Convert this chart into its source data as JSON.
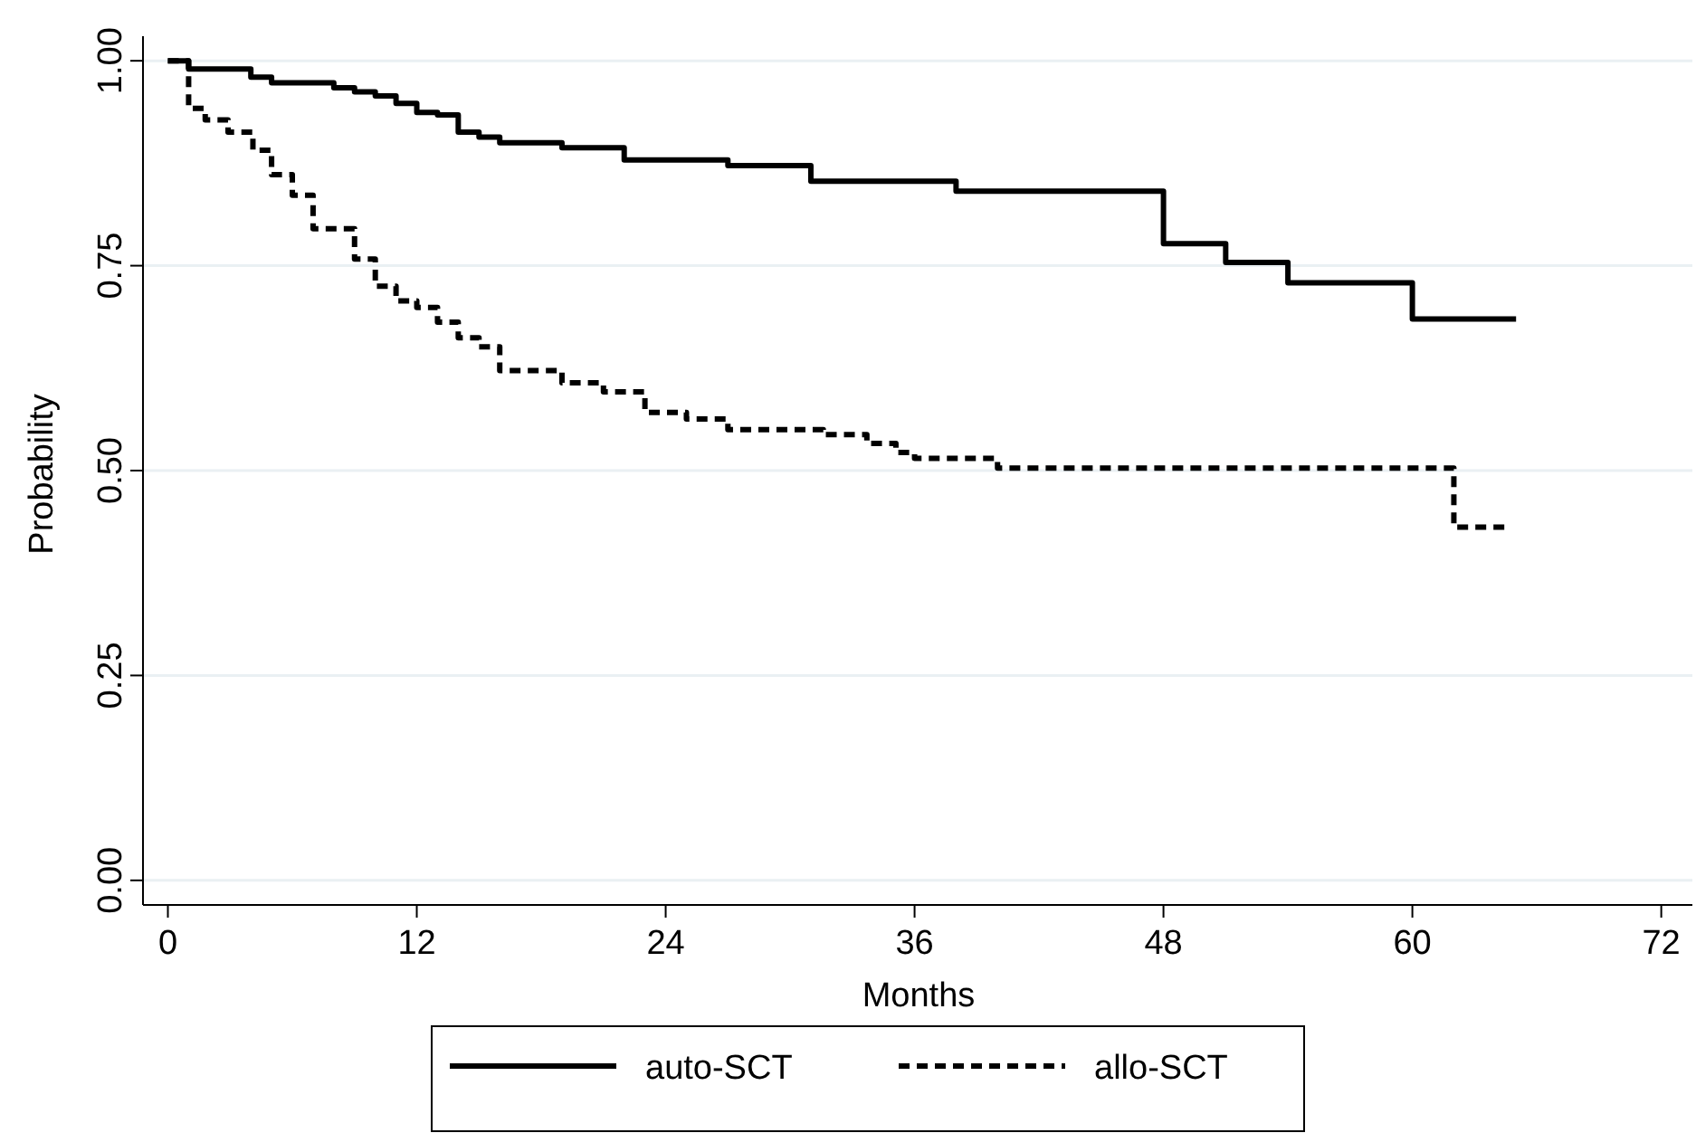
{
  "chart_data": {
    "type": "step",
    "xlabel": "Months",
    "ylabel": "Probability",
    "xlim": [
      -1.2,
      73.5
    ],
    "xticks": [
      0,
      12,
      24,
      36,
      48,
      60,
      72
    ],
    "ylim": [
      -0.03,
      1.03
    ],
    "yticks": [
      {
        "value": 0,
        "label": "0.00"
      },
      {
        "value": 0.25,
        "label": "0.25"
      },
      {
        "value": 0.5,
        "label": "0.50"
      },
      {
        "value": 0.75,
        "label": "0.75"
      },
      {
        "value": 1,
        "label": "1.00"
      }
    ],
    "grid": "y",
    "legend": "bottom",
    "series": [
      {
        "name": "auto-SCT",
        "color": "#000000",
        "line_style": "solid",
        "x": [
          0,
          1,
          4,
          5,
          8,
          9,
          10,
          11,
          12,
          13,
          14,
          15,
          16,
          19,
          22,
          27,
          31,
          38,
          48,
          51,
          54,
          60,
          65
        ],
        "values": [
          1,
          0.99,
          0.98,
          0.973,
          0.967,
          0.962,
          0.957,
          0.948,
          0.937,
          0.934,
          0.913,
          0.907,
          0.9,
          0.894,
          0.879,
          0.872,
          0.853,
          0.841,
          0.777,
          0.754,
          0.729,
          0.685,
          0.685
        ]
      },
      {
        "name": "allo-SCT",
        "color": "#000000",
        "line_style": "dashed",
        "x": [
          0,
          1,
          1.8,
          2.9,
          4.1,
          5,
          6,
          7,
          9,
          10,
          11,
          12,
          13,
          14,
          15,
          16,
          19,
          21,
          23,
          25,
          27,
          31.6,
          33.7,
          35.1,
          36,
          40,
          62,
          64.5
        ],
        "values": [
          1,
          0.942,
          0.928,
          0.913,
          0.891,
          0.861,
          0.836,
          0.795,
          0.758,
          0.725,
          0.707,
          0.699,
          0.681,
          0.662,
          0.651,
          0.622,
          0.607,
          0.596,
          0.571,
          0.563,
          0.55,
          0.544,
          0.533,
          0.522,
          0.515,
          0.503,
          0.431,
          0.431
        ]
      }
    ]
  }
}
